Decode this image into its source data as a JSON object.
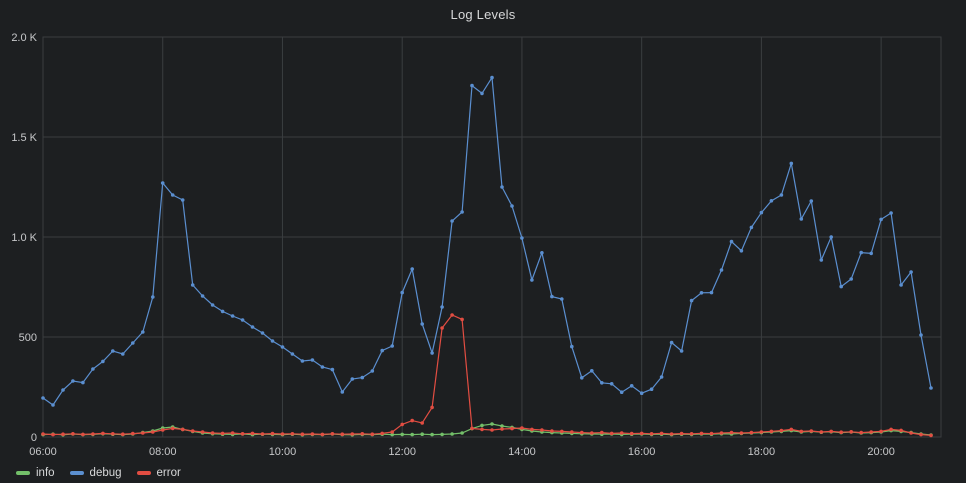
{
  "panel": {
    "title": "Log Levels"
  },
  "colors": {
    "background": "#1d1f21",
    "grid": "#3a3d40",
    "axis_text": "#c7c8ca",
    "title_text": "#d8d9da",
    "legend_text": "#d8d9da"
  },
  "chart_data": {
    "type": "line",
    "title": "Log Levels",
    "grid": true,
    "legend_position": "bottom-left",
    "x_axis": {
      "min_minute": 360,
      "max_minute": 1260,
      "tick_minutes": [
        360,
        480,
        600,
        720,
        840,
        960,
        1080,
        1200
      ],
      "tick_labels": [
        "06:00",
        "08:00",
        "10:00",
        "12:00",
        "14:00",
        "16:00",
        "18:00",
        "20:00"
      ]
    },
    "y_axis": {
      "min": 0,
      "max": 2000,
      "tick_values": [
        0,
        500,
        1000,
        1500,
        2000
      ],
      "tick_labels": [
        "0",
        "500",
        "1.0 K",
        "1.5 K",
        "2.0 K"
      ]
    },
    "start_minute": 360,
    "point_interval_minutes": 10,
    "series": [
      {
        "name": "info",
        "color": "#73bf69",
        "values": [
          12,
          14,
          11,
          15,
          12,
          13,
          16,
          14,
          12,
          15,
          22,
          30,
          45,
          50,
          38,
          28,
          20,
          16,
          14,
          13,
          15,
          12,
          14,
          13,
          12,
          14,
          11,
          13,
          12,
          15,
          12,
          11,
          13,
          12,
          14,
          12,
          13,
          12,
          14,
          12,
          13,
          15,
          20,
          42,
          58,
          65,
          55,
          48,
          38,
          30,
          25,
          22,
          20,
          18,
          16,
          15,
          14,
          15,
          13,
          14,
          15,
          13,
          14,
          12,
          14,
          13,
          15,
          14,
          16,
          15,
          18,
          20,
          22,
          25,
          28,
          32,
          25,
          28,
          24,
          26,
          22,
          25,
          20,
          22,
          25,
          32,
          28,
          22,
          15,
          10
        ]
      },
      {
        "name": "debug",
        "color": "#5b8fd0",
        "values": [
          195,
          160,
          235,
          280,
          272,
          340,
          378,
          430,
          415,
          470,
          525,
          700,
          1270,
          1210,
          1185,
          760,
          705,
          660,
          628,
          605,
          585,
          550,
          520,
          480,
          450,
          415,
          380,
          385,
          350,
          337,
          225,
          290,
          297,
          330,
          432,
          455,
          722,
          840,
          565,
          420,
          650,
          1080,
          1125,
          1757,
          1718,
          1797,
          1250,
          1155,
          995,
          785,
          921,
          702,
          690,
          452,
          296,
          331,
          271,
          266,
          224,
          256,
          219,
          239,
          300,
          472,
          430,
          682,
          721,
          722,
          835,
          977,
          931,
          1048,
          1122,
          1181,
          1210,
          1368,
          1090,
          1180,
          885,
          1000,
          752,
          790,
          922,
          918,
          1088,
          1120,
          760,
          825,
          510,
          245
        ]
      },
      {
        "name": "error",
        "color": "#e24d42",
        "values": [
          15,
          12,
          14,
          16,
          13,
          15,
          18,
          16,
          14,
          17,
          20,
          25,
          35,
          43,
          38,
          30,
          25,
          20,
          18,
          20,
          16,
          18,
          15,
          17,
          15,
          16,
          14,
          15,
          13,
          16,
          14,
          15,
          16,
          14,
          18,
          25,
          63,
          82,
          70,
          148,
          545,
          610,
          588,
          43,
          38,
          35,
          40,
          42,
          45,
          38,
          35,
          30,
          28,
          25,
          22,
          20,
          22,
          18,
          20,
          17,
          18,
          16,
          18,
          15,
          17,
          16,
          18,
          17,
          20,
          22,
          20,
          22,
          25,
          28,
          32,
          38,
          28,
          30,
          25,
          28,
          24,
          26,
          22,
          25,
          28,
          38,
          33,
          20,
          12,
          8
        ]
      }
    ]
  }
}
